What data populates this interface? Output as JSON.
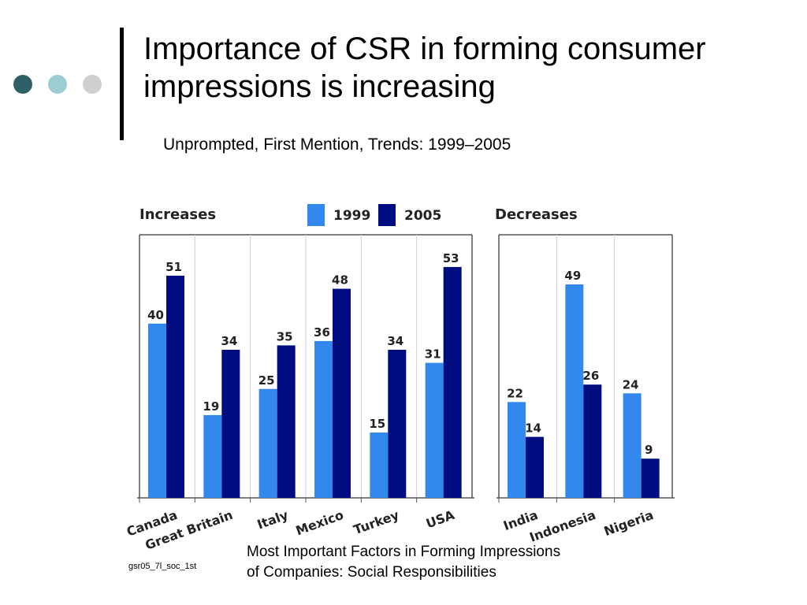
{
  "title": "Importance of CSR in forming consumer impressions is increasing",
  "subtitle": "Unprompted, First Mention, Trends: 1999–2005",
  "caption_line1": "Most Important Factors in Forming Impressions",
  "caption_line2": "of Companies: Social Responsibilities",
  "source_code": "gsr05_7l_soc_1st",
  "colors": {
    "series_1999": "#3388ee",
    "series_2005": "#000c80",
    "dot_dark": "#2f6068",
    "dot_teal": "#9ccdd3",
    "dot_light": "#cfcfcf"
  },
  "chart_data": {
    "type": "bar",
    "legend": [
      "1999",
      "2005"
    ],
    "legend_position": "top",
    "grid": false,
    "panels": [
      {
        "title": "Increases",
        "categories": [
          "Canada",
          "Great Britain",
          "Italy",
          "Mexico",
          "Turkey",
          "USA"
        ],
        "series": [
          {
            "name": "1999",
            "values": [
              40,
              19,
              25,
              36,
              15,
              31
            ]
          },
          {
            "name": "2005",
            "values": [
              51,
              34,
              35,
              48,
              34,
              53
            ]
          }
        ]
      },
      {
        "title": "Decreases",
        "categories": [
          "India",
          "Indonesia",
          "Nigeria"
        ],
        "series": [
          {
            "name": "1999",
            "values": [
              22,
              49,
              24
            ]
          },
          {
            "name": "2005",
            "values": [
              14,
              26,
              9
            ]
          }
        ]
      }
    ]
  }
}
